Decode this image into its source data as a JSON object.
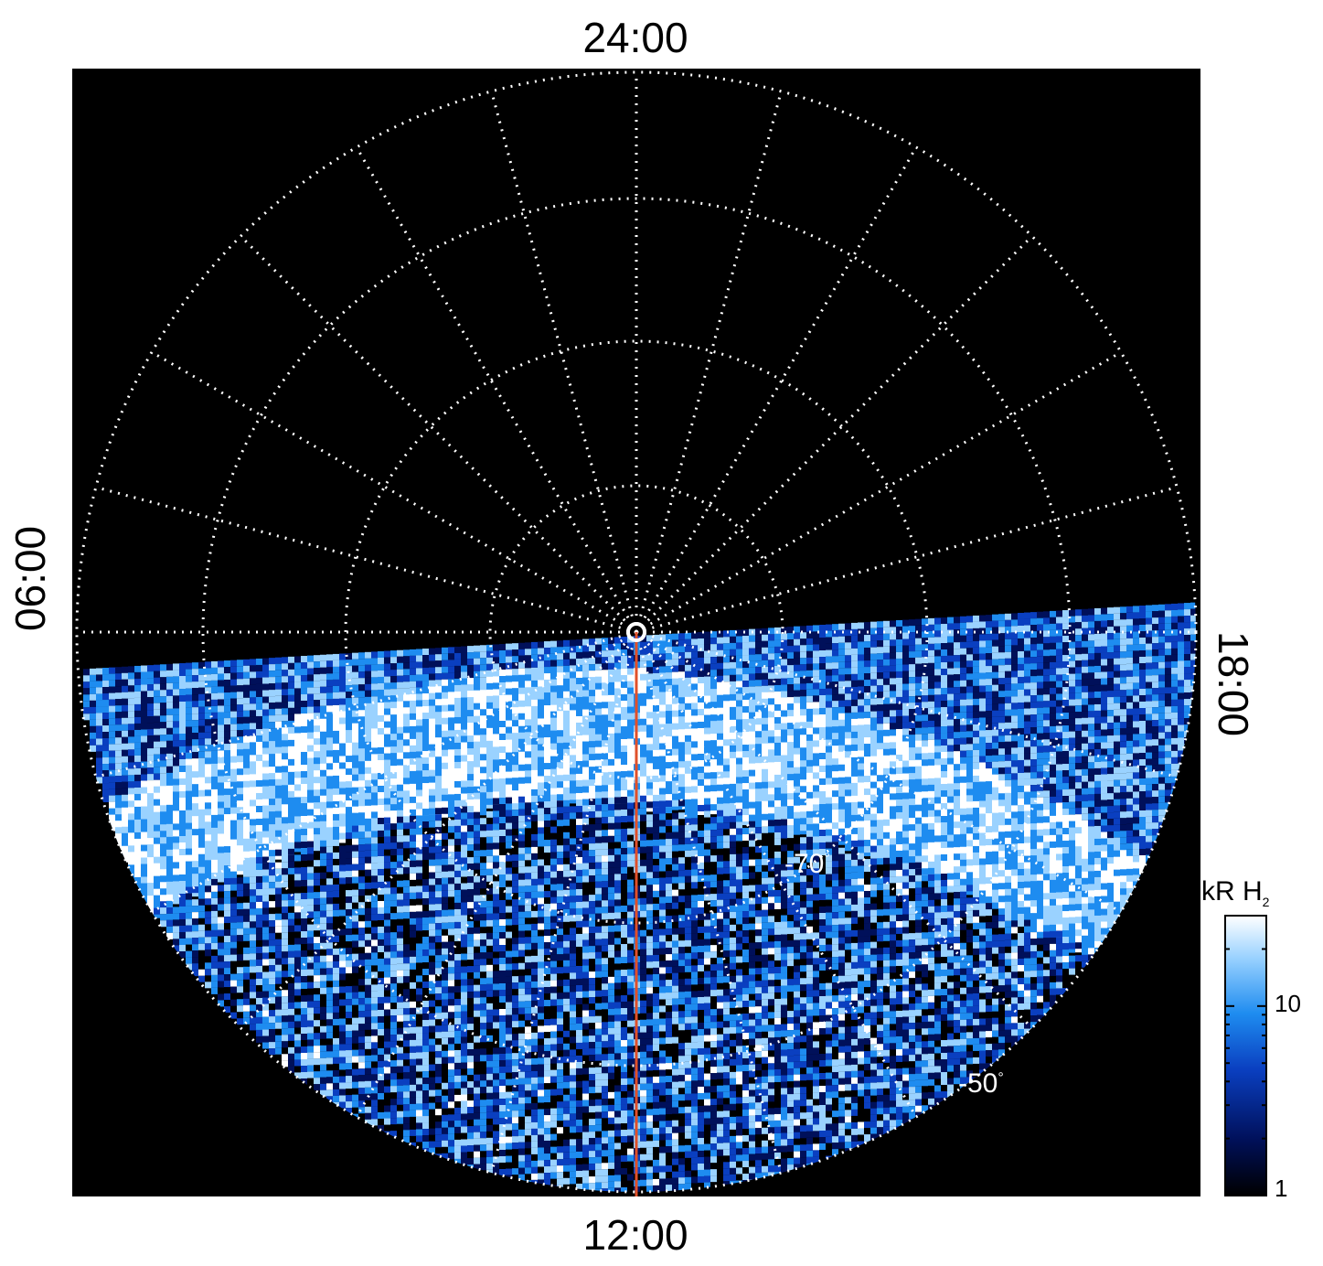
{
  "labels": {
    "top": "24:00",
    "bottom": "12:00",
    "left": "06:00",
    "right": "18:00"
  },
  "colorbar": {
    "title": "kR H",
    "title_sub": "2",
    "ticks": [
      {
        "value": 10,
        "label": "10"
      },
      {
        "value": 1,
        "label": "1"
      }
    ],
    "range": [
      1,
      30
    ],
    "scale": "log",
    "colors": [
      "#000000",
      "#00105a",
      "#0a3fc0",
      "#1e8cf0",
      "#9ad2ff",
      "#ffffff"
    ]
  },
  "latitude_labels": [
    {
      "text": "-70",
      "unit": "°"
    },
    {
      "text": "-50",
      "unit": "°"
    }
  ],
  "colors": {
    "background": "#000000",
    "grid": "#ffffff",
    "meridian_line": "#e0502a"
  }
}
